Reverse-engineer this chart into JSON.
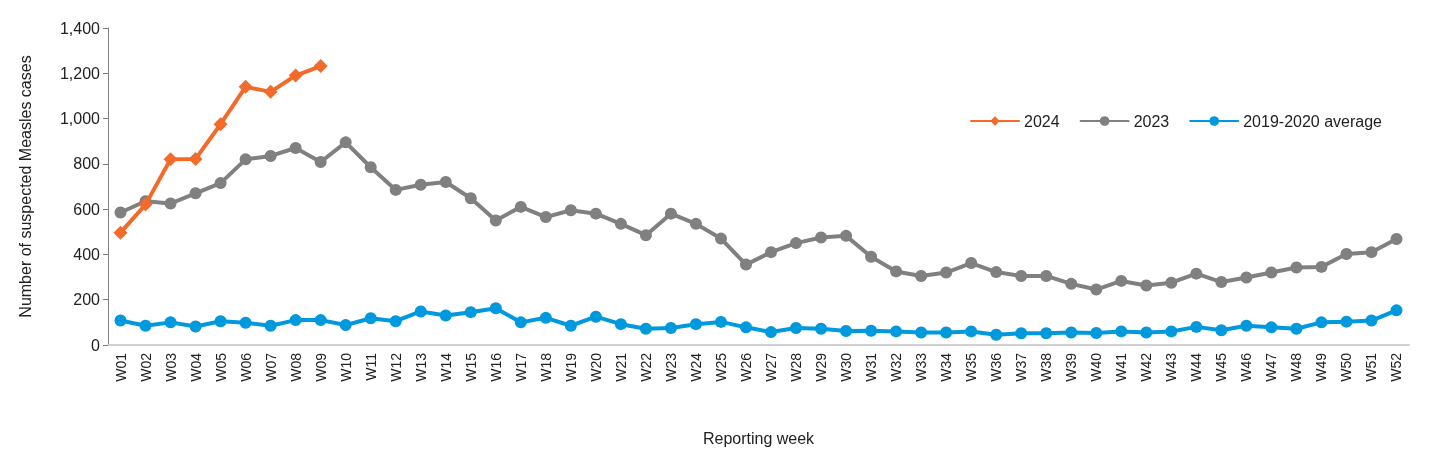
{
  "chart_data": {
    "type": "line",
    "xlabel": "Reporting week",
    "ylabel": "Number of suspected Measles cases",
    "categories": [
      "W01",
      "W02",
      "W03",
      "W04",
      "W05",
      "W06",
      "W07",
      "W08",
      "W09",
      "W10",
      "W11",
      "W12",
      "W13",
      "W14",
      "W15",
      "W16",
      "W17",
      "W18",
      "W19",
      "W20",
      "W21",
      "W22",
      "W23",
      "W24",
      "W25",
      "W26",
      "W27",
      "W28",
      "W29",
      "W30",
      "W31",
      "W32",
      "W33",
      "W34",
      "W35",
      "W36",
      "W37",
      "W38",
      "W39",
      "W40",
      "W41",
      "W42",
      "W43",
      "W44",
      "W45",
      "W46",
      "W47",
      "W48",
      "W49",
      "W50",
      "W51",
      "W52"
    ],
    "series": [
      {
        "name": "2024",
        "color": "#f26b2b",
        "marker": "diamond",
        "values": [
          496,
          620,
          820,
          822,
          975,
          1140,
          1118,
          1190,
          1232,
          null,
          null,
          null,
          null,
          null,
          null,
          null,
          null,
          null,
          null,
          null,
          null,
          null,
          null,
          null,
          null,
          null,
          null,
          null,
          null,
          null,
          null,
          null,
          null,
          null,
          null,
          null,
          null,
          null,
          null,
          null,
          null,
          null,
          null,
          null,
          null,
          null,
          null,
          null,
          null,
          null,
          null,
          null
        ]
      },
      {
        "name": "2023",
        "color": "#808080",
        "marker": "circle",
        "values": [
          585,
          635,
          625,
          670,
          715,
          820,
          835,
          870,
          808,
          895,
          785,
          685,
          708,
          720,
          648,
          550,
          610,
          565,
          595,
          580,
          535,
          485,
          580,
          535,
          470,
          355,
          410,
          450,
          475,
          482,
          390,
          325,
          305,
          320,
          362,
          322,
          305,
          305,
          270,
          245,
          283,
          263,
          275,
          315,
          278,
          298,
          320,
          342,
          345,
          402,
          410,
          468
        ]
      },
      {
        "name": "2019-2020 average",
        "color": "#0099dd",
        "marker": "circle",
        "values": [
          108,
          85,
          100,
          82,
          105,
          98,
          85,
          110,
          110,
          88,
          118,
          105,
          148,
          130,
          145,
          162,
          100,
          120,
          85,
          125,
          92,
          72,
          75,
          92,
          102,
          78,
          57,
          75,
          72,
          62,
          63,
          60,
          55,
          55,
          60,
          45,
          52,
          52,
          55,
          53,
          60,
          55,
          60,
          80,
          65,
          85,
          78,
          72,
          100,
          103,
          108,
          153
        ]
      }
    ],
    "ylim": [
      0,
      1400
    ],
    "yticks": [
      0,
      200,
      400,
      600,
      800,
      {
        "value": 1000,
        "label": "1,000"
      },
      {
        "value": 1200,
        "label": "1,200"
      },
      {
        "value": 1400,
        "label": "1,400"
      }
    ],
    "grid": false,
    "legend": "top right",
    "line_style": "solid"
  }
}
